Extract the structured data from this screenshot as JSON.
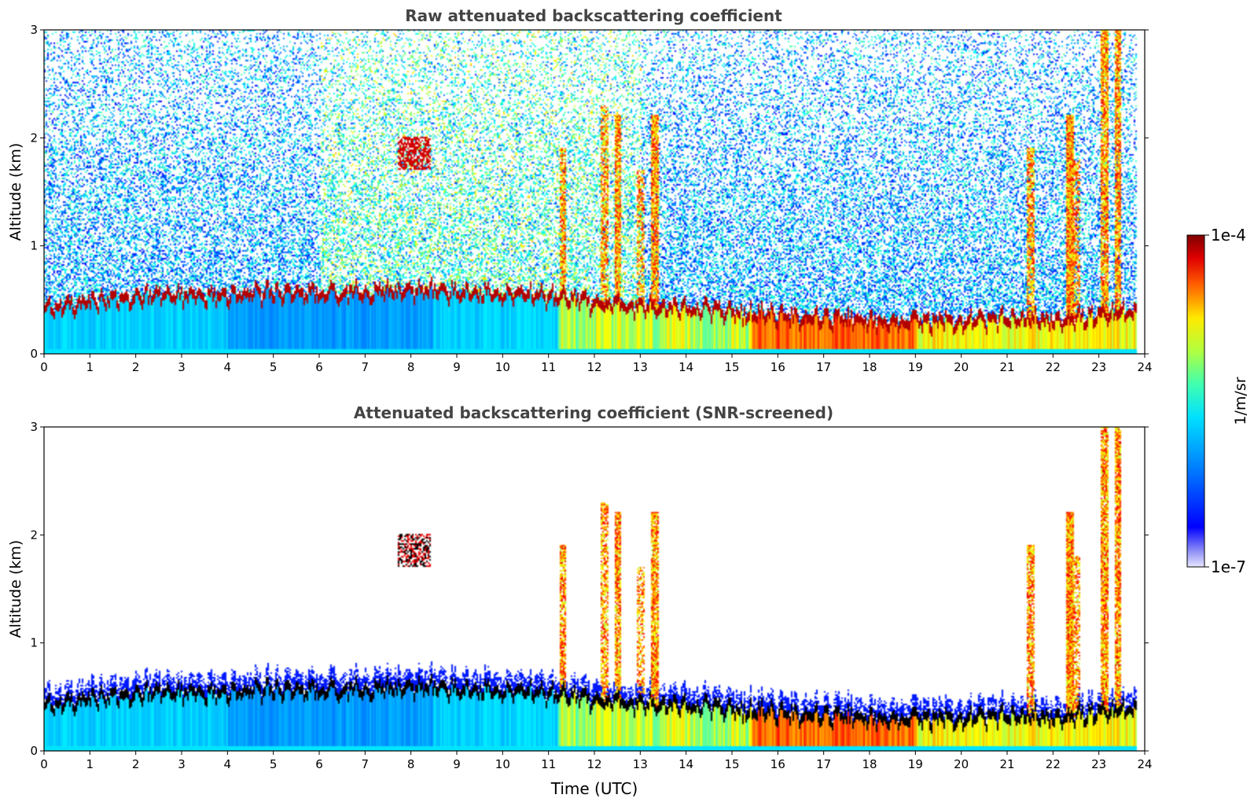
{
  "chart_data": [
    {
      "type": "heatmap",
      "title": "Raw attenuated backscattering coefficient",
      "xlabel": "",
      "ylabel": "Altitude (km)",
      "xlim": [
        0,
        24
      ],
      "ylim": [
        0,
        3
      ],
      "x_ticks": [
        "0",
        "1",
        "2",
        "3",
        "4",
        "5",
        "6",
        "7",
        "8",
        "9",
        "10",
        "11",
        "12",
        "13",
        "14",
        "15",
        "16",
        "17",
        "18",
        "19",
        "20",
        "21",
        "22",
        "23",
        "24"
      ],
      "y_ticks": [
        "0",
        "1",
        "2",
        "3"
      ],
      "screened": false,
      "features": {
        "boundary_layer_top_km": [
          {
            "t": 0,
            "z": 0.45
          },
          {
            "t": 2,
            "z": 0.55
          },
          {
            "t": 4,
            "z": 0.58
          },
          {
            "t": 6,
            "z": 0.6
          },
          {
            "t": 8,
            "z": 0.62
          },
          {
            "t": 10,
            "z": 0.58
          },
          {
            "t": 11.2,
            "z": 0.55
          },
          {
            "t": 12,
            "z": 0.5
          },
          {
            "t": 14,
            "z": 0.45
          },
          {
            "t": 16,
            "z": 0.38
          },
          {
            "t": 18,
            "z": 0.33
          },
          {
            "t": 20,
            "z": 0.33
          },
          {
            "t": 22,
            "z": 0.35
          },
          {
            "t": 23.8,
            "z": 0.4
          }
        ],
        "elevated_cloud": {
          "t_start": 7.7,
          "t_end": 8.4,
          "z_low_km": 1.7,
          "z_high_km": 2.0
        },
        "data_end_hour": 23.8
      }
    },
    {
      "type": "heatmap",
      "title": "Attenuated backscattering coefficient (SNR-screened)",
      "xlabel": "Time (UTC)",
      "ylabel": "Altitude (km)",
      "xlim": [
        0,
        24
      ],
      "ylim": [
        0,
        3
      ],
      "x_ticks": [
        "0",
        "1",
        "2",
        "3",
        "4",
        "5",
        "6",
        "7",
        "8",
        "9",
        "10",
        "11",
        "12",
        "13",
        "14",
        "15",
        "16",
        "17",
        "18",
        "19",
        "20",
        "21",
        "22",
        "23",
        "24"
      ],
      "y_ticks": [
        "0",
        "1",
        "2",
        "3"
      ],
      "screened": true,
      "features": {
        "boundary_layer_top_km": [
          {
            "t": 0,
            "z": 0.45
          },
          {
            "t": 2,
            "z": 0.55
          },
          {
            "t": 4,
            "z": 0.58
          },
          {
            "t": 6,
            "z": 0.6
          },
          {
            "t": 8,
            "z": 0.62
          },
          {
            "t": 10,
            "z": 0.58
          },
          {
            "t": 11.2,
            "z": 0.55
          },
          {
            "t": 12,
            "z": 0.5
          },
          {
            "t": 14,
            "z": 0.45
          },
          {
            "t": 16,
            "z": 0.38
          },
          {
            "t": 18,
            "z": 0.33
          },
          {
            "t": 20,
            "z": 0.33
          },
          {
            "t": 22,
            "z": 0.35
          },
          {
            "t": 23.8,
            "z": 0.4
          }
        ],
        "elevated_cloud": {
          "t_start": 7.7,
          "t_end": 8.4,
          "z_low_km": 1.7,
          "z_high_km": 2.0
        },
        "data_end_hour": 23.8
      }
    }
  ],
  "colorbar": {
    "max_label": "1e-4",
    "min_label": "1e-7",
    "label": "1/m/sr",
    "colormap": "jet",
    "scale": "log"
  }
}
